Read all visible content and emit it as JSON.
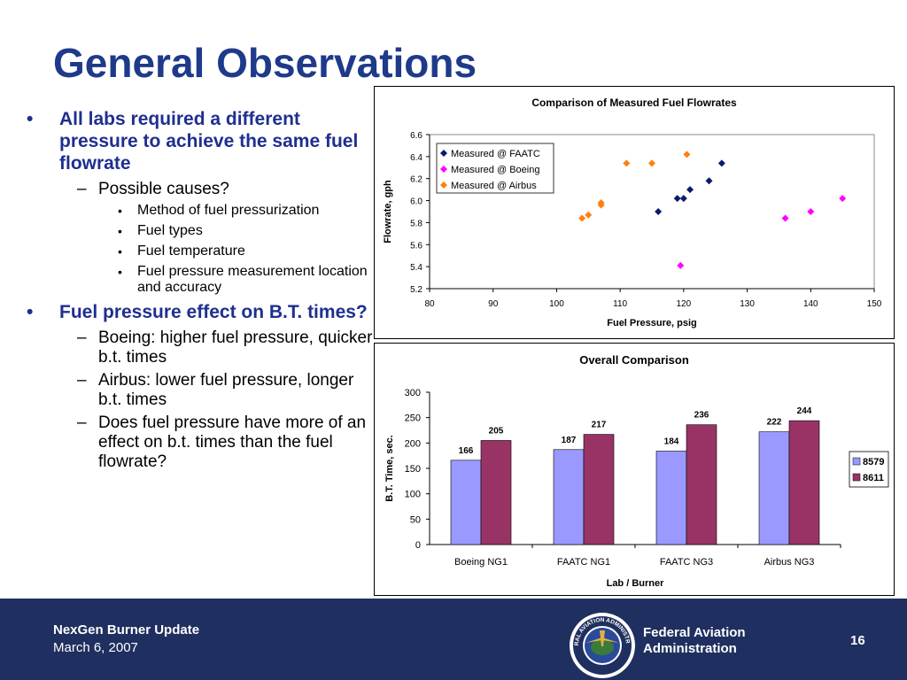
{
  "slide": {
    "title": "General Observations",
    "bullets": [
      {
        "bullet": "•",
        "text": "All labs required a different pressure to achieve the same fuel flowrate",
        "sub": [
          {
            "bullet": "–",
            "text": "Possible causes?",
            "sub": [
              {
                "bullet": "•",
                "text": "Method of fuel pressurization"
              },
              {
                "bullet": "•",
                "text": "Fuel types"
              },
              {
                "bullet": "•",
                "text": "Fuel temperature"
              },
              {
                "bullet": "•",
                "text": "Fuel pressure measurement location and accuracy"
              }
            ]
          }
        ]
      },
      {
        "bullet": "•",
        "text": "Fuel pressure effect on B.T. times?",
        "sub": [
          {
            "bullet": "–",
            "text": "Boeing:  higher fuel pressure, quicker b.t. times"
          },
          {
            "bullet": "–",
            "text": "Airbus:  lower fuel pressure, longer b.t. times"
          },
          {
            "bullet": "–",
            "text": "Does fuel pressure have more of an effect on b.t. times than the fuel flowrate?"
          }
        ]
      }
    ]
  },
  "footer": {
    "title": "NexGen Burner Update",
    "date": "March 6, 2007",
    "org": "Federal Aviation Administration",
    "page": "16",
    "seal_text": "FEDERAL AVIATION ADMINISTRATION",
    "seal_icon": "faa-seal-icon",
    "background": "#1f2f5f"
  },
  "chart_data": [
    {
      "type": "scatter",
      "title": "Comparison of Measured Fuel Flowrates",
      "xlabel": "Fuel Pressure, psig",
      "ylabel": "Flowrate, gph",
      "xlim": [
        80,
        150
      ],
      "ylim": [
        5.2,
        6.6
      ],
      "xticks": [
        "80",
        "90",
        "100",
        "110",
        "120",
        "130",
        "140",
        "150"
      ],
      "yticks": [
        "5.2",
        "5.4",
        "5.6",
        "5.8",
        "6.0",
        "6.2",
        "6.4",
        "6.6"
      ],
      "grid": false,
      "legend": "top-left",
      "series": [
        {
          "name": "Measured @ FAATC",
          "color": "#0a1a6e",
          "points": [
            [
              116,
              5.9
            ],
            [
              119,
              6.02
            ],
            [
              120,
              6.02
            ],
            [
              121,
              6.1
            ],
            [
              124,
              6.18
            ],
            [
              126,
              6.34
            ]
          ]
        },
        {
          "name": "Measured @ Boeing",
          "color": "#ff00ff",
          "points": [
            [
              119.5,
              5.41
            ],
            [
              136,
              5.84
            ],
            [
              140,
              5.9
            ],
            [
              145,
              6.02
            ]
          ]
        },
        {
          "name": "Measured @ Airbus",
          "color": "#ff7f0e",
          "points": [
            [
              104,
              5.84
            ],
            [
              105,
              5.87
            ],
            [
              107,
              5.96
            ],
            [
              107,
              5.98
            ],
            [
              111,
              6.34
            ],
            [
              115,
              6.34
            ],
            [
              120.5,
              6.42
            ]
          ]
        }
      ]
    },
    {
      "type": "bar",
      "title": "Overall Comparison",
      "xlabel": "Lab / Burner",
      "ylabel": "B.T. Time, sec.",
      "ylim": [
        0,
        300
      ],
      "yticks": [
        "0",
        "50",
        "100",
        "150",
        "200",
        "250",
        "300"
      ],
      "categories": [
        "Boeing NG1",
        "FAATC NG1",
        "FAATC NG3",
        "Airbus NG3"
      ],
      "legend": "right",
      "series": [
        {
          "name": "8579",
          "color": "#9999ff",
          "values": [
            166,
            187,
            184,
            222
          ],
          "labels": [
            "166",
            "187",
            "184",
            "222"
          ]
        },
        {
          "name": "8611",
          "color": "#993366",
          "values": [
            205,
            217,
            236,
            244
          ],
          "labels": [
            "205",
            "217",
            "236",
            "244"
          ]
        }
      ]
    }
  ]
}
